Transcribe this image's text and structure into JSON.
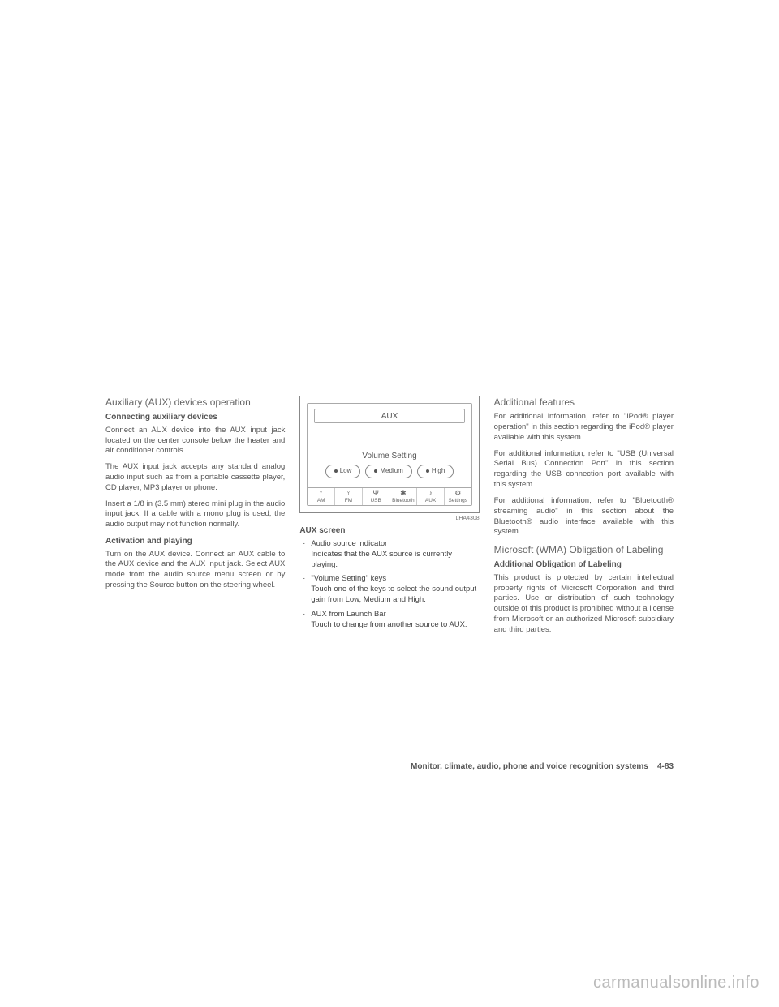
{
  "col1": {
    "heading": "Auxiliary (AUX) devices operation",
    "sub1": "Connecting auxiliary devices",
    "p1": "Connect an AUX device into the AUX input jack located on the center console below the heater and air conditioner controls.",
    "p2": "The AUX input jack accepts any standard analog audio input such as from a portable cassette player, CD player, MP3 player or phone.",
    "p3": "Insert a 1/8 in (3.5 mm) stereo mini plug in the audio input jack. If a cable with a mono plug is used, the audio output may not function normally.",
    "sub2": "Activation and playing",
    "p4": "Turn on the AUX device. Connect an AUX cable to the AUX device and the AUX input jack. Select AUX mode from the audio source menu screen or by pressing the Source button on the steering wheel."
  },
  "figure": {
    "title": "AUX",
    "volLabel": "Volume Setting",
    "btnLow": "Low",
    "btnMed": "Medium",
    "btnHigh": "High",
    "launch": [
      "AM",
      "FM",
      "USB",
      "Bluetooth",
      "AUX",
      "Settings"
    ],
    "code": "LHA4308"
  },
  "col2": {
    "heading": "AUX screen",
    "b1t": "Audio source indicator",
    "b1d": "Indicates that the AUX source is currently playing.",
    "b2t": "\"Volume Setting\" keys",
    "b2d": "Touch one of the keys to select the sound output gain from Low, Medium and High.",
    "b3t": "AUX from Launch Bar",
    "b3d": "Touch to change from another source to AUX."
  },
  "col3": {
    "heading1": "Additional features",
    "p1": "For additional information, refer to \"iPod® player operation\" in this section regarding the iPod® player available with this system.",
    "p2": "For additional information, refer to \"USB (Universal Serial Bus) Connection Port\" in this section regarding the USB connection port available with this system.",
    "p3": "For additional information, refer to \"Bluetooth® streaming audio\" in this section about the Bluetooth® audio interface available with this system.",
    "heading2": "Microsoft (WMA) Obligation of Labeling",
    "sub": "Additional Obligation of Labeling",
    "p4": "This product is protected by certain intellectual property rights of Microsoft Corporation and third parties. Use or distribution of such technology outside of this product is prohibited without a license from Microsoft or an authorized Microsoft subsidiary and third parties."
  },
  "footer": {
    "text": "Monitor, climate, audio, phone and voice recognition systems",
    "page": "4-83"
  },
  "watermark": "carmanualsonline.info"
}
